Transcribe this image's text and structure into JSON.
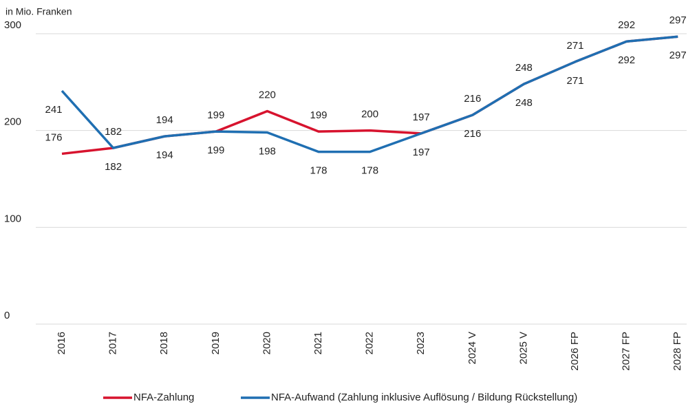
{
  "chart_data": {
    "type": "line",
    "y_label": "in Mio. Franken",
    "categories": [
      "2016",
      "2017",
      "2018",
      "2019",
      "2020",
      "2021",
      "2022",
      "2023",
      "2024 V",
      "2025 V",
      "2026 FP",
      "2027 FP",
      "2028 FP"
    ],
    "series": [
      {
        "name": "NFA-Zahlung",
        "color": "#d7132e",
        "values": [
          176,
          182,
          194,
          199,
          220,
          199,
          200,
          197,
          216,
          248,
          271,
          292,
          297
        ]
      },
      {
        "name": "NFA-Aufwand (Zahlung inklusive Auflösung / Bildung Rückstellung)",
        "color": "#1f6fb2",
        "values": [
          241,
          182,
          194,
          199,
          198,
          178,
          178,
          197,
          216,
          248,
          271,
          292,
          297
        ]
      }
    ],
    "ylim": [
      0,
      300
    ],
    "yticks": [
      0,
      100,
      200,
      300
    ],
    "grid": true
  }
}
